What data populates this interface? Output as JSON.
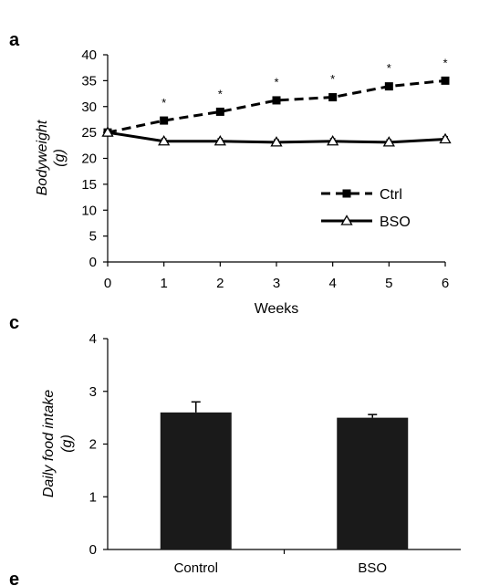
{
  "panels": {
    "a": "a",
    "c": "c",
    "e": "e"
  },
  "chart_data": [
    {
      "type": "line",
      "x": [
        0,
        1,
        2,
        3,
        4,
        5,
        6
      ],
      "series": [
        {
          "name": "Ctrl",
          "values": [
            25,
            27.3,
            29,
            31.2,
            31.8,
            33.9,
            35
          ],
          "errors": [
            0.4,
            0.5,
            0.5,
            0.6,
            0.6,
            0.6,
            0.5
          ],
          "style": "dashed",
          "marker": "square",
          "color": "#000000"
        },
        {
          "name": "BSO",
          "values": [
            25,
            23.3,
            23.3,
            23.1,
            23.3,
            23.1,
            23.7
          ],
          "errors": [
            0.4,
            0.5,
            0.5,
            0.5,
            0.5,
            0.5,
            0.5
          ],
          "style": "solid",
          "marker": "triangle-open",
          "color": "#000000"
        }
      ],
      "significance": {
        "x": [
          1,
          2,
          3,
          4,
          5,
          6
        ],
        "symbol": "*"
      },
      "xlabel": "Weeks",
      "ylabel_line1": "Bodyweight",
      "ylabel_line2": "(g)",
      "xlim": [
        0,
        6
      ],
      "ylim": [
        0,
        40
      ],
      "xticks": [
        "0",
        "1",
        "2",
        "3",
        "4",
        "5",
        "6"
      ],
      "yticks": [
        "0",
        "5",
        "10",
        "15",
        "20",
        "25",
        "30",
        "35",
        "40"
      ],
      "legend_position": "right-center",
      "grid": false
    },
    {
      "type": "bar",
      "categories": [
        "Control",
        "BSO"
      ],
      "values": [
        2.6,
        2.5
      ],
      "errors": [
        0.2,
        0.06
      ],
      "bar_color": "#1a1a1a",
      "ylabel_line1": "Daily food intake",
      "ylabel_line2": "(g)",
      "ylim": [
        0,
        4
      ],
      "yticks": [
        "0",
        "1",
        "2",
        "3",
        "4"
      ],
      "grid": false
    }
  ]
}
